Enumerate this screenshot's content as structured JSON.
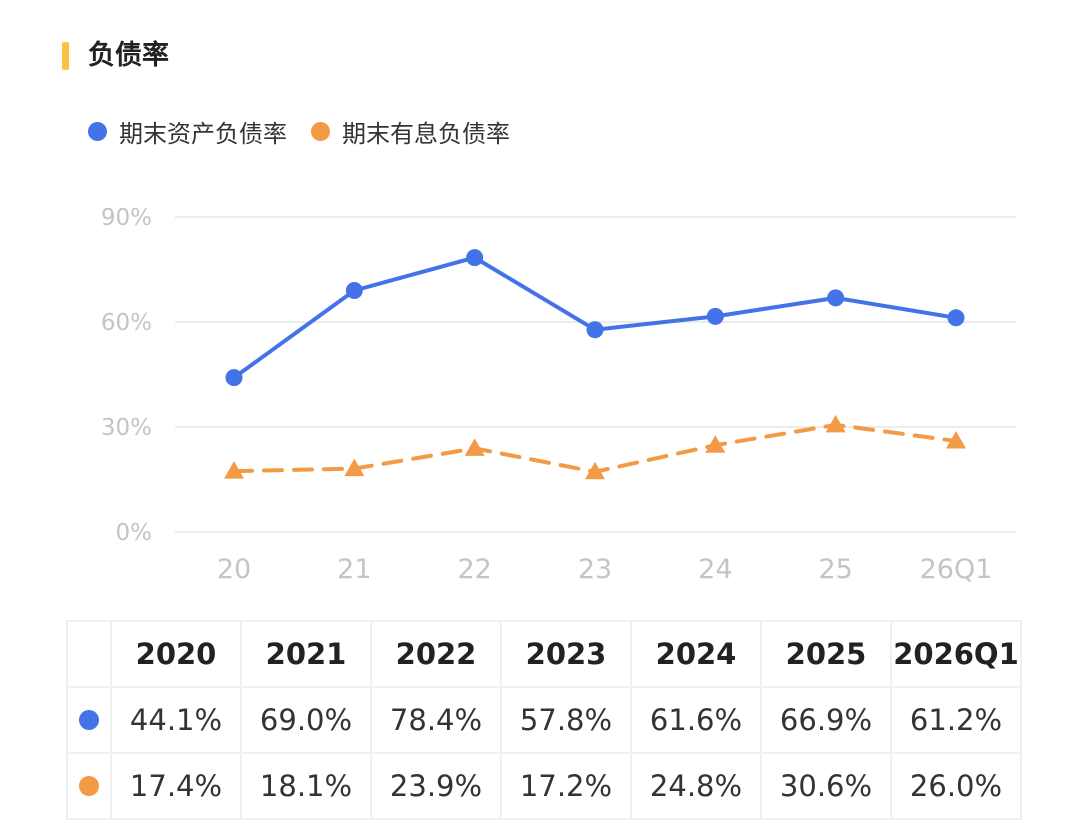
{
  "title": "负债率",
  "colors": {
    "accent": "#f6c342",
    "series1": "#4472e8",
    "series2": "#f39a46",
    "grid": "#ececec",
    "tick": "#c4c4c4"
  },
  "chart_data": {
    "type": "line",
    "categories": [
      "20",
      "21",
      "22",
      "23",
      "24",
      "25",
      "26Q1"
    ],
    "ylim": [
      0,
      90
    ],
    "yticks": [
      "0%",
      "30%",
      "60%",
      "90%"
    ],
    "grid": true,
    "legend_position": "top-left",
    "series": [
      {
        "name": "期末资产负债率",
        "marker": "circle",
        "line": "solid",
        "values": [
          44.1,
          69.0,
          78.4,
          57.8,
          61.6,
          66.9,
          61.2
        ]
      },
      {
        "name": "期末有息负债率",
        "marker": "triangle",
        "line": "dashed",
        "values": [
          17.4,
          18.1,
          23.9,
          17.2,
          24.8,
          30.6,
          26.0
        ]
      }
    ]
  },
  "table": {
    "headers": [
      "2020",
      "2021",
      "2022",
      "2023",
      "2024",
      "2025",
      "2026Q1"
    ],
    "rows": [
      [
        "44.1%",
        "69.0%",
        "78.4%",
        "57.8%",
        "61.6%",
        "66.9%",
        "61.2%"
      ],
      [
        "17.4%",
        "18.1%",
        "23.9%",
        "17.2%",
        "24.8%",
        "30.6%",
        "26.0%"
      ]
    ]
  }
}
